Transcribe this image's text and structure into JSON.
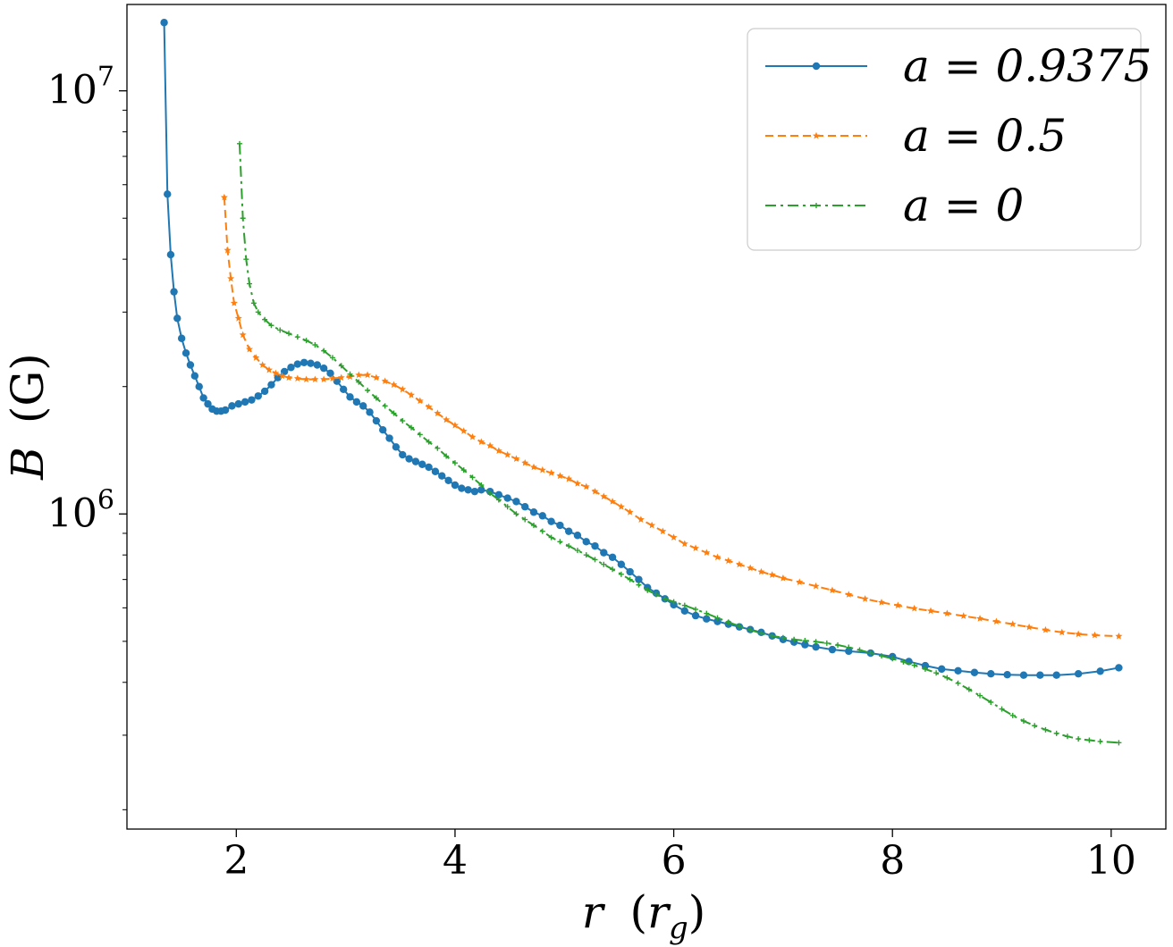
{
  "chart_data": {
    "type": "line",
    "title": "",
    "xlabel": "r (r_g)",
    "ylabel": "B (G)",
    "xlabel_parts": {
      "var": "r",
      "unit_open": "(",
      "unit_var": "r",
      "unit_sub": "g",
      "unit_close": ")"
    },
    "ylabel_parts": {
      "var": "B",
      "unit": "(G)"
    },
    "x_scale": "linear",
    "y_scale": "log",
    "xlim": [
      1.0,
      10.5
    ],
    "ylim": [
      180000,
      16000000
    ],
    "x_ticks": [
      2,
      4,
      6,
      8,
      10
    ],
    "x_tick_labels": [
      "2",
      "4",
      "6",
      "8",
      "10"
    ],
    "y_major_ticks": [
      1000000,
      10000000
    ],
    "y_tick_labels": [
      {
        "base": "10",
        "exp": "6"
      },
      {
        "base": "10",
        "exp": "7"
      }
    ],
    "grid": false,
    "legend_position": "top-right",
    "series": [
      {
        "name": "a = 0.9375",
        "color": "#1f77b4",
        "linestyle": "solid",
        "marker": "circle",
        "points": [
          [
            1.34,
            14500000
          ],
          [
            1.37,
            5700000
          ],
          [
            1.4,
            4100000
          ],
          [
            1.43,
            3350000
          ],
          [
            1.46,
            2900000
          ],
          [
            1.5,
            2600000
          ],
          [
            1.54,
            2400000
          ],
          [
            1.58,
            2250000
          ],
          [
            1.62,
            2120000
          ],
          [
            1.66,
            2000000
          ],
          [
            1.7,
            1880000
          ],
          [
            1.74,
            1820000
          ],
          [
            1.78,
            1770000
          ],
          [
            1.82,
            1750000
          ],
          [
            1.86,
            1750000
          ],
          [
            1.9,
            1760000
          ],
          [
            1.96,
            1800000
          ],
          [
            2.02,
            1820000
          ],
          [
            2.08,
            1840000
          ],
          [
            2.14,
            1860000
          ],
          [
            2.2,
            1900000
          ],
          [
            2.26,
            1950000
          ],
          [
            2.32,
            2020000
          ],
          [
            2.38,
            2100000
          ],
          [
            2.44,
            2170000
          ],
          [
            2.5,
            2220000
          ],
          [
            2.56,
            2260000
          ],
          [
            2.62,
            2280000
          ],
          [
            2.68,
            2270000
          ],
          [
            2.74,
            2250000
          ],
          [
            2.8,
            2210000
          ],
          [
            2.86,
            2150000
          ],
          [
            2.92,
            2060000
          ],
          [
            2.98,
            1970000
          ],
          [
            3.04,
            1890000
          ],
          [
            3.1,
            1840000
          ],
          [
            3.16,
            1800000
          ],
          [
            3.22,
            1740000
          ],
          [
            3.28,
            1660000
          ],
          [
            3.34,
            1580000
          ],
          [
            3.4,
            1510000
          ],
          [
            3.46,
            1440000
          ],
          [
            3.52,
            1380000
          ],
          [
            3.58,
            1350000
          ],
          [
            3.64,
            1330000
          ],
          [
            3.7,
            1310000
          ],
          [
            3.76,
            1290000
          ],
          [
            3.82,
            1260000
          ],
          [
            3.88,
            1230000
          ],
          [
            3.94,
            1200000
          ],
          [
            4.0,
            1170000
          ],
          [
            4.06,
            1150000
          ],
          [
            4.12,
            1140000
          ],
          [
            4.18,
            1130000
          ],
          [
            4.24,
            1140000
          ],
          [
            4.32,
            1130000
          ],
          [
            4.4,
            1110000
          ],
          [
            4.48,
            1090000
          ],
          [
            4.56,
            1070000
          ],
          [
            4.64,
            1040000
          ],
          [
            4.72,
            1010000
          ],
          [
            4.8,
            990000
          ],
          [
            4.88,
            960000
          ],
          [
            4.96,
            940000
          ],
          [
            5.04,
            910000
          ],
          [
            5.12,
            890000
          ],
          [
            5.2,
            860000
          ],
          [
            5.28,
            840000
          ],
          [
            5.36,
            810000
          ],
          [
            5.44,
            790000
          ],
          [
            5.52,
            760000
          ],
          [
            5.6,
            730000
          ],
          [
            5.68,
            700000
          ],
          [
            5.76,
            670000
          ],
          [
            5.84,
            650000
          ],
          [
            5.92,
            630000
          ],
          [
            6.0,
            610000
          ],
          [
            6.1,
            590000
          ],
          [
            6.2,
            575000
          ],
          [
            6.3,
            565000
          ],
          [
            6.4,
            557000
          ],
          [
            6.5,
            549000
          ],
          [
            6.6,
            541000
          ],
          [
            6.7,
            533000
          ],
          [
            6.8,
            525000
          ],
          [
            6.9,
            515000
          ],
          [
            7.0,
            505000
          ],
          [
            7.1,
            498000
          ],
          [
            7.2,
            491000
          ],
          [
            7.3,
            485000
          ],
          [
            7.45,
            478000
          ],
          [
            7.6,
            474000
          ],
          [
            7.8,
            469000
          ],
          [
            8.0,
            460000
          ],
          [
            8.15,
            448000
          ],
          [
            8.3,
            438000
          ],
          [
            8.45,
            430000
          ],
          [
            8.6,
            426000
          ],
          [
            8.75,
            422000
          ],
          [
            8.9,
            419000
          ],
          [
            9.05,
            417000
          ],
          [
            9.2,
            416000
          ],
          [
            9.35,
            416000
          ],
          [
            9.5,
            416000
          ],
          [
            9.7,
            419000
          ],
          [
            9.9,
            425000
          ],
          [
            10.07,
            433000
          ]
        ]
      },
      {
        "name": "a = 0.5",
        "color": "#ff7f0e",
        "linestyle": "dashed",
        "marker": "star",
        "points": [
          [
            1.89,
            5600000
          ],
          [
            1.92,
            4200000
          ],
          [
            1.95,
            3600000
          ],
          [
            1.98,
            3150000
          ],
          [
            2.02,
            2900000
          ],
          [
            2.06,
            2650000
          ],
          [
            2.12,
            2450000
          ],
          [
            2.18,
            2340000
          ],
          [
            2.24,
            2250000
          ],
          [
            2.3,
            2190000
          ],
          [
            2.36,
            2150000
          ],
          [
            2.42,
            2120000
          ],
          [
            2.48,
            2100000
          ],
          [
            2.56,
            2090000
          ],
          [
            2.64,
            2080000
          ],
          [
            2.72,
            2080000
          ],
          [
            2.8,
            2080000
          ],
          [
            2.88,
            2090000
          ],
          [
            2.96,
            2100000
          ],
          [
            3.04,
            2110000
          ],
          [
            3.12,
            2130000
          ],
          [
            3.2,
            2130000
          ],
          [
            3.28,
            2100000
          ],
          [
            3.36,
            2060000
          ],
          [
            3.44,
            2020000
          ],
          [
            3.52,
            1970000
          ],
          [
            3.6,
            1910000
          ],
          [
            3.68,
            1850000
          ],
          [
            3.76,
            1790000
          ],
          [
            3.84,
            1730000
          ],
          [
            3.92,
            1670000
          ],
          [
            4.0,
            1620000
          ],
          [
            4.08,
            1570000
          ],
          [
            4.16,
            1520000
          ],
          [
            4.24,
            1480000
          ],
          [
            4.32,
            1450000
          ],
          [
            4.4,
            1410000
          ],
          [
            4.48,
            1380000
          ],
          [
            4.56,
            1350000
          ],
          [
            4.64,
            1320000
          ],
          [
            4.72,
            1290000
          ],
          [
            4.8,
            1270000
          ],
          [
            4.88,
            1250000
          ],
          [
            4.96,
            1230000
          ],
          [
            5.04,
            1210000
          ],
          [
            5.12,
            1180000
          ],
          [
            5.2,
            1160000
          ],
          [
            5.28,
            1130000
          ],
          [
            5.36,
            1100000
          ],
          [
            5.44,
            1070000
          ],
          [
            5.52,
            1040000
          ],
          [
            5.6,
            1010000
          ],
          [
            5.7,
            970000
          ],
          [
            5.8,
            940000
          ],
          [
            5.9,
            910000
          ],
          [
            6.0,
            880000
          ],
          [
            6.1,
            850000
          ],
          [
            6.2,
            830000
          ],
          [
            6.3,
            810000
          ],
          [
            6.4,
            790000
          ],
          [
            6.5,
            775000
          ],
          [
            6.6,
            760000
          ],
          [
            6.7,
            745000
          ],
          [
            6.8,
            730000
          ],
          [
            6.9,
            718000
          ],
          [
            7.0,
            705000
          ],
          [
            7.15,
            690000
          ],
          [
            7.3,
            675000
          ],
          [
            7.45,
            660000
          ],
          [
            7.6,
            645000
          ],
          [
            7.75,
            630000
          ],
          [
            7.9,
            618000
          ],
          [
            8.05,
            608000
          ],
          [
            8.2,
            598000
          ],
          [
            8.35,
            590000
          ],
          [
            8.5,
            582000
          ],
          [
            8.65,
            574000
          ],
          [
            8.8,
            566000
          ],
          [
            8.95,
            557000
          ],
          [
            9.1,
            549000
          ],
          [
            9.25,
            540000
          ],
          [
            9.4,
            532000
          ],
          [
            9.55,
            525000
          ],
          [
            9.7,
            520000
          ],
          [
            9.85,
            517000
          ],
          [
            10.07,
            514000
          ]
        ]
      },
      {
        "name": "a = 0",
        "color": "#2ca02c",
        "linestyle": "dashdot",
        "marker": "plus",
        "points": [
          [
            2.03,
            7500000
          ],
          [
            2.06,
            5000000
          ],
          [
            2.09,
            4000000
          ],
          [
            2.12,
            3500000
          ],
          [
            2.16,
            3150000
          ],
          [
            2.2,
            3000000
          ],
          [
            2.26,
            2880000
          ],
          [
            2.32,
            2790000
          ],
          [
            2.4,
            2720000
          ],
          [
            2.48,
            2670000
          ],
          [
            2.56,
            2620000
          ],
          [
            2.64,
            2570000
          ],
          [
            2.72,
            2510000
          ],
          [
            2.8,
            2430000
          ],
          [
            2.88,
            2340000
          ],
          [
            2.96,
            2240000
          ],
          [
            3.04,
            2140000
          ],
          [
            3.12,
            2050000
          ],
          [
            3.2,
            1960000
          ],
          [
            3.28,
            1880000
          ],
          [
            3.36,
            1800000
          ],
          [
            3.44,
            1730000
          ],
          [
            3.52,
            1660000
          ],
          [
            3.6,
            1600000
          ],
          [
            3.68,
            1540000
          ],
          [
            3.76,
            1480000
          ],
          [
            3.84,
            1430000
          ],
          [
            3.92,
            1370000
          ],
          [
            4.0,
            1320000
          ],
          [
            4.08,
            1270000
          ],
          [
            4.16,
            1220000
          ],
          [
            4.24,
            1170000
          ],
          [
            4.32,
            1120000
          ],
          [
            4.4,
            1080000
          ],
          [
            4.48,
            1040000
          ],
          [
            4.56,
            1000000
          ],
          [
            4.64,
            970000
          ],
          [
            4.72,
            940000
          ],
          [
            4.8,
            910000
          ],
          [
            4.88,
            880000
          ],
          [
            4.96,
            860000
          ],
          [
            5.04,
            840000
          ],
          [
            5.12,
            820000
          ],
          [
            5.2,
            800000
          ],
          [
            5.28,
            780000
          ],
          [
            5.36,
            760000
          ],
          [
            5.44,
            740000
          ],
          [
            5.52,
            720000
          ],
          [
            5.6,
            700000
          ],
          [
            5.68,
            680000
          ],
          [
            5.76,
            660000
          ],
          [
            5.84,
            645000
          ],
          [
            5.92,
            630000
          ],
          [
            6.0,
            620000
          ],
          [
            6.1,
            608000
          ],
          [
            6.2,
            595000
          ],
          [
            6.3,
            582000
          ],
          [
            6.4,
            568000
          ],
          [
            6.5,
            555000
          ],
          [
            6.6,
            543000
          ],
          [
            6.7,
            532000
          ],
          [
            6.8,
            522000
          ],
          [
            6.9,
            515000
          ],
          [
            7.0,
            510000
          ],
          [
            7.1,
            505000
          ],
          [
            7.2,
            502000
          ],
          [
            7.3,
            499000
          ],
          [
            7.4,
            495000
          ],
          [
            7.5,
            490000
          ],
          [
            7.6,
            484000
          ],
          [
            7.7,
            477000
          ],
          [
            7.8,
            469000
          ],
          [
            7.9,
            462000
          ],
          [
            8.0,
            455000
          ],
          [
            8.1,
            447000
          ],
          [
            8.2,
            439000
          ],
          [
            8.3,
            430000
          ],
          [
            8.4,
            421000
          ],
          [
            8.5,
            410000
          ],
          [
            8.6,
            398000
          ],
          [
            8.7,
            385000
          ],
          [
            8.8,
            372000
          ],
          [
            8.9,
            359000
          ],
          [
            9.0,
            346000
          ],
          [
            9.1,
            334000
          ],
          [
            9.2,
            324000
          ],
          [
            9.3,
            316000
          ],
          [
            9.4,
            309000
          ],
          [
            9.5,
            303000
          ],
          [
            9.6,
            298000
          ],
          [
            9.7,
            294000
          ],
          [
            9.8,
            292000
          ],
          [
            9.9,
            290000
          ],
          [
            10.07,
            288000
          ]
        ]
      }
    ]
  }
}
